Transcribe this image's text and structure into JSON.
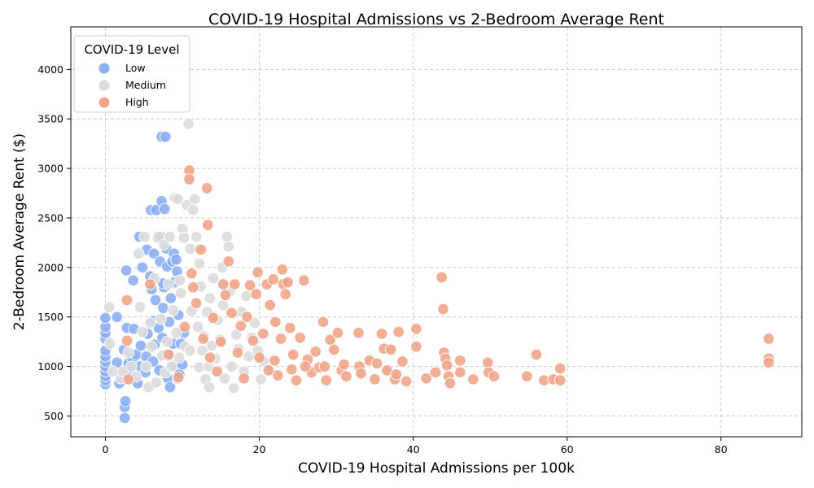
{
  "chart_data": {
    "type": "scatter",
    "title": "COVID-19 Hospital Admissions vs 2-Bedroom Average Rent",
    "xlabel": "COVID-19 Hospital Admissions per 100k",
    "ylabel": "2-Bedroom Average Rent ($)",
    "xlim": [
      -4.5,
      90.5
    ],
    "ylim": [
      290,
      4430
    ],
    "xticks": [
      0,
      20,
      40,
      60,
      80
    ],
    "yticks": [
      500,
      1000,
      1500,
      2000,
      2500,
      3000,
      3500,
      4000
    ],
    "grid": true,
    "legend": {
      "title": "COVID-19 Level",
      "placement": "top-left",
      "entries": [
        "Low",
        "Medium",
        "High"
      ]
    },
    "series": [
      {
        "name": "Low",
        "color": "#8caff5",
        "points": [
          [
            0,
            820
          ],
          [
            0,
            860
          ],
          [
            0,
            900
          ],
          [
            0,
            950
          ],
          [
            0,
            1000
          ],
          [
            0,
            1050
          ],
          [
            0,
            1100
          ],
          [
            0,
            1160
          ],
          [
            0,
            1280
          ],
          [
            0,
            1340
          ],
          [
            0,
            1400
          ],
          [
            0,
            1490
          ],
          [
            1.5,
            1500
          ],
          [
            1.5,
            1040
          ],
          [
            1.8,
            830
          ],
          [
            2.2,
            920
          ],
          [
            2.4,
            1170
          ],
          [
            2.5,
            480
          ],
          [
            2.5,
            590
          ],
          [
            2.6,
            650
          ],
          [
            2.7,
            1970
          ],
          [
            2.8,
            1390
          ],
          [
            2.9,
            900
          ],
          [
            3,
            1030
          ],
          [
            3.3,
            950
          ],
          [
            3.5,
            1080
          ],
          [
            3.6,
            1870
          ],
          [
            3.7,
            1380
          ],
          [
            4,
            1120
          ],
          [
            4.2,
            830
          ],
          [
            4.4,
            2310
          ],
          [
            4.5,
            1000
          ],
          [
            4.6,
            1210
          ],
          [
            4.8,
            2000
          ],
          [
            5.2,
            940
          ],
          [
            5.3,
            1100
          ],
          [
            5.4,
            2180
          ],
          [
            5.5,
            1330
          ],
          [
            5.8,
            1910
          ],
          [
            5.9,
            2580
          ],
          [
            6,
            1780
          ],
          [
            6.2,
            1050
          ],
          [
            6.2,
            1460
          ],
          [
            6.3,
            2140
          ],
          [
            6.4,
            1220
          ],
          [
            6.5,
            1670
          ],
          [
            6.6,
            2580
          ],
          [
            6.8,
            2300
          ],
          [
            6.9,
            1390
          ],
          [
            7,
            960
          ],
          [
            7.1,
            2060
          ],
          [
            7.3,
            3320
          ],
          [
            7.3,
            2670
          ],
          [
            7.4,
            1290
          ],
          [
            7.5,
            1590
          ],
          [
            7.6,
            1800
          ],
          [
            7.7,
            2590
          ],
          [
            7.8,
            3320
          ],
          [
            7.9,
            2190
          ],
          [
            8,
            2010
          ],
          [
            8.1,
            880
          ],
          [
            8.2,
            1110
          ],
          [
            8.3,
            1450
          ],
          [
            8.4,
            790
          ],
          [
            8.5,
            1690
          ],
          [
            8.7,
            2060
          ],
          [
            8.8,
            1230
          ],
          [
            8.9,
            2140
          ],
          [
            9,
            1850
          ],
          [
            9,
            1010
          ],
          [
            9.2,
            2080
          ],
          [
            9.3,
            1960
          ],
          [
            9.4,
            880
          ],
          [
            9.5,
            1520
          ],
          [
            9.6,
            920
          ],
          [
            9.8,
            1230
          ],
          [
            10,
            1020
          ],
          [
            10.2,
            1340
          ],
          [
            7.2,
            2310
          ],
          [
            7.5,
            1840
          ]
        ]
      },
      {
        "name": "Medium",
        "color": "#dcdcdc",
        "points": [
          [
            0.5,
            1600
          ],
          [
            0.6,
            1230
          ],
          [
            1,
            950
          ],
          [
            2,
            880
          ],
          [
            2.3,
            950
          ],
          [
            3,
            1140
          ],
          [
            3.4,
            1000
          ],
          [
            4,
            900
          ],
          [
            4.3,
            2140
          ],
          [
            4.5,
            1600
          ],
          [
            4.8,
            1350
          ],
          [
            5.1,
            2310
          ],
          [
            5.3,
            1000
          ],
          [
            5.6,
            790
          ],
          [
            5.8,
            1440
          ],
          [
            6,
            1200
          ],
          [
            6.4,
            1890
          ],
          [
            6.6,
            840
          ],
          [
            6.9,
            2310
          ],
          [
            7.2,
            1480
          ],
          [
            7.4,
            1110
          ],
          [
            7.6,
            2230
          ],
          [
            7.8,
            940
          ],
          [
            8,
            1250
          ],
          [
            8.2,
            1830
          ],
          [
            8.4,
            2310
          ],
          [
            8.6,
            1000
          ],
          [
            8.8,
            1570
          ],
          [
            9,
            2700
          ],
          [
            9.2,
            1340
          ],
          [
            9.4,
            2690
          ],
          [
            9.6,
            1090
          ],
          [
            9.8,
            1740
          ],
          [
            10,
            2390
          ],
          [
            10.2,
            2300
          ],
          [
            10.4,
            1200
          ],
          [
            10.6,
            2630
          ],
          [
            10.8,
            3450
          ],
          [
            11,
            2190
          ],
          [
            11.2,
            1560
          ],
          [
            11.4,
            2580
          ],
          [
            11.6,
            2690
          ],
          [
            11.8,
            2310
          ],
          [
            12,
            1400
          ],
          [
            12.2,
            990
          ],
          [
            12.4,
            1810
          ],
          [
            12.6,
            1160
          ],
          [
            12.8,
            1310
          ],
          [
            13,
            870
          ],
          [
            13.2,
            1550
          ],
          [
            13.4,
            1000
          ],
          [
            13.6,
            1690
          ],
          [
            13.8,
            1210
          ],
          [
            14,
            1890
          ],
          [
            14.3,
            1080
          ],
          [
            14.6,
            1470
          ],
          [
            14.9,
            1270
          ],
          [
            15.2,
            2000
          ],
          [
            15.5,
            880
          ],
          [
            15.8,
            2310
          ],
          [
            16,
            2210
          ],
          [
            16.2,
            1760
          ],
          [
            16.4,
            1000
          ],
          [
            16.7,
            780
          ],
          [
            17,
            1320
          ],
          [
            17.3,
            1180
          ],
          [
            17.7,
            1550
          ],
          [
            18,
            950
          ],
          [
            18.3,
            1710
          ],
          [
            18.6,
            1100
          ],
          [
            19,
            1290
          ],
          [
            19.4,
            1440
          ],
          [
            19.8,
            1160
          ],
          [
            20.2,
            870
          ],
          [
            20.6,
            1050
          ],
          [
            11,
            1160
          ],
          [
            13.5,
            790
          ],
          [
            15.3,
            1620
          ],
          [
            9.7,
            1870
          ],
          [
            12.2,
            2040
          ]
        ]
      },
      {
        "name": "High",
        "color": "#f0a58a",
        "points": [
          [
            2.8,
            1670
          ],
          [
            2.8,
            1260
          ],
          [
            3,
            870
          ],
          [
            5.8,
            1830
          ],
          [
            8.2,
            1120
          ],
          [
            9.5,
            890
          ],
          [
            10.3,
            1400
          ],
          [
            10.9,
            2980
          ],
          [
            10.9,
            2890
          ],
          [
            11.2,
            1940
          ],
          [
            11.4,
            1800
          ],
          [
            11.8,
            1640
          ],
          [
            12.4,
            2180
          ],
          [
            12.7,
            1280
          ],
          [
            13.2,
            2800
          ],
          [
            13.3,
            2430
          ],
          [
            13.6,
            1090
          ],
          [
            14,
            1490
          ],
          [
            14.5,
            950
          ],
          [
            15,
            1250
          ],
          [
            15.3,
            1830
          ],
          [
            15.6,
            1720
          ],
          [
            16,
            2060
          ],
          [
            16.4,
            1540
          ],
          [
            16.8,
            1830
          ],
          [
            17.2,
            1140
          ],
          [
            17.6,
            1410
          ],
          [
            18,
            880
          ],
          [
            18.4,
            1500
          ],
          [
            18.8,
            1820
          ],
          [
            19.2,
            1260
          ],
          [
            19.6,
            1730
          ],
          [
            19.8,
            1950
          ],
          [
            20,
            1090
          ],
          [
            20.5,
            1330
          ],
          [
            21,
            1830
          ],
          [
            21.4,
            1620
          ],
          [
            21.8,
            1880
          ],
          [
            22.1,
            1450
          ],
          [
            22.4,
            910
          ],
          [
            22.8,
            1280
          ],
          [
            23,
            1980
          ],
          [
            23.1,
            1830
          ],
          [
            23.4,
            1730
          ],
          [
            23.7,
            1850
          ],
          [
            24,
            1390
          ],
          [
            24.4,
            1120
          ],
          [
            24.8,
            860
          ],
          [
            25.3,
            1290
          ],
          [
            25.8,
            1870
          ],
          [
            26.3,
            1070
          ],
          [
            26.8,
            940
          ],
          [
            27.3,
            1150
          ],
          [
            27.8,
            990
          ],
          [
            28.3,
            1450
          ],
          [
            28.7,
            860
          ],
          [
            29.2,
            1270
          ],
          [
            29.7,
            1170
          ],
          [
            30.2,
            1340
          ],
          [
            30.7,
            960
          ],
          [
            31.3,
            900
          ],
          [
            32.9,
            1340
          ],
          [
            33,
            1000
          ],
          [
            34.3,
            1060
          ],
          [
            35,
            870
          ],
          [
            35.9,
            1330
          ],
          [
            36.2,
            1180
          ],
          [
            36.6,
            960
          ],
          [
            37.1,
            1170
          ],
          [
            37.6,
            870
          ],
          [
            38.1,
            1350
          ],
          [
            38.6,
            1050
          ],
          [
            39.1,
            850
          ],
          [
            40.4,
            1380
          ],
          [
            40.4,
            1200
          ],
          [
            41.7,
            880
          ],
          [
            42.9,
            940
          ],
          [
            43.7,
            1900
          ],
          [
            43.9,
            1580
          ],
          [
            44,
            1140
          ],
          [
            44.2,
            1080
          ],
          [
            44.4,
            1010
          ],
          [
            44.6,
            900
          ],
          [
            44.8,
            830
          ],
          [
            46.1,
            1060
          ],
          [
            46.1,
            940
          ],
          [
            47.8,
            870
          ],
          [
            49.7,
            1040
          ],
          [
            49.8,
            940
          ],
          [
            50.5,
            900
          ],
          [
            54.8,
            900
          ],
          [
            56,
            1120
          ],
          [
            57,
            860
          ],
          [
            58.2,
            870
          ],
          [
            59.1,
            980
          ],
          [
            59.1,
            860
          ],
          [
            86.2,
            1280
          ],
          [
            86.2,
            1080
          ],
          [
            86.2,
            1040
          ],
          [
            21.2,
            960
          ],
          [
            22,
            1060
          ],
          [
            24.2,
            970
          ],
          [
            26,
            1000
          ],
          [
            28.5,
            1000
          ],
          [
            31,
            1020
          ],
          [
            33.2,
            930
          ],
          [
            35.3,
            1030
          ],
          [
            37.8,
            920
          ]
        ]
      }
    ]
  }
}
